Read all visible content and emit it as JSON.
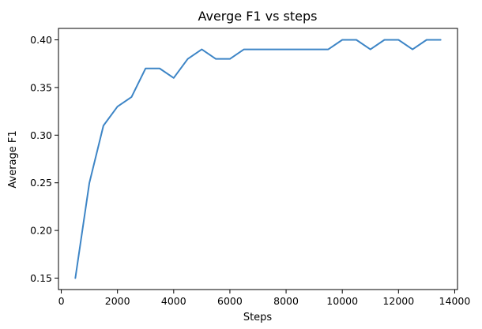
{
  "chart_data": {
    "type": "line",
    "title": "Averge F1 vs steps",
    "xlabel": "Steps",
    "ylabel": "Average F1",
    "xlim": [
      -100,
      14100
    ],
    "ylim": [
      0.138,
      0.412
    ],
    "xticks": [
      0,
      2000,
      4000,
      6000,
      8000,
      10000,
      12000,
      14000
    ],
    "xtick_labels": [
      "0",
      "2000",
      "4000",
      "6000",
      "8000",
      "10000",
      "12000",
      "14000"
    ],
    "yticks": [
      0.15,
      0.2,
      0.25,
      0.3,
      0.35,
      0.4
    ],
    "ytick_labels": [
      "0.15",
      "0.20",
      "0.25",
      "0.30",
      "0.35",
      "0.40"
    ],
    "grid": false,
    "legend": "none",
    "series": [
      {
        "color": "#3d85c6",
        "x": [
          500,
          1000,
          1500,
          2000,
          2500,
          3000,
          3500,
          4000,
          4500,
          5000,
          5500,
          6000,
          6500,
          7000,
          7500,
          8000,
          8500,
          9000,
          9500,
          10000,
          10500,
          11000,
          11500,
          12000,
          12500,
          13000,
          13500
        ],
        "y": [
          0.15,
          0.25,
          0.31,
          0.33,
          0.34,
          0.37,
          0.37,
          0.36,
          0.38,
          0.39,
          0.38,
          0.38,
          0.39,
          0.39,
          0.39,
          0.39,
          0.39,
          0.39,
          0.39,
          0.4,
          0.4,
          0.39,
          0.4,
          0.4,
          0.39,
          0.4,
          0.4
        ]
      }
    ]
  }
}
